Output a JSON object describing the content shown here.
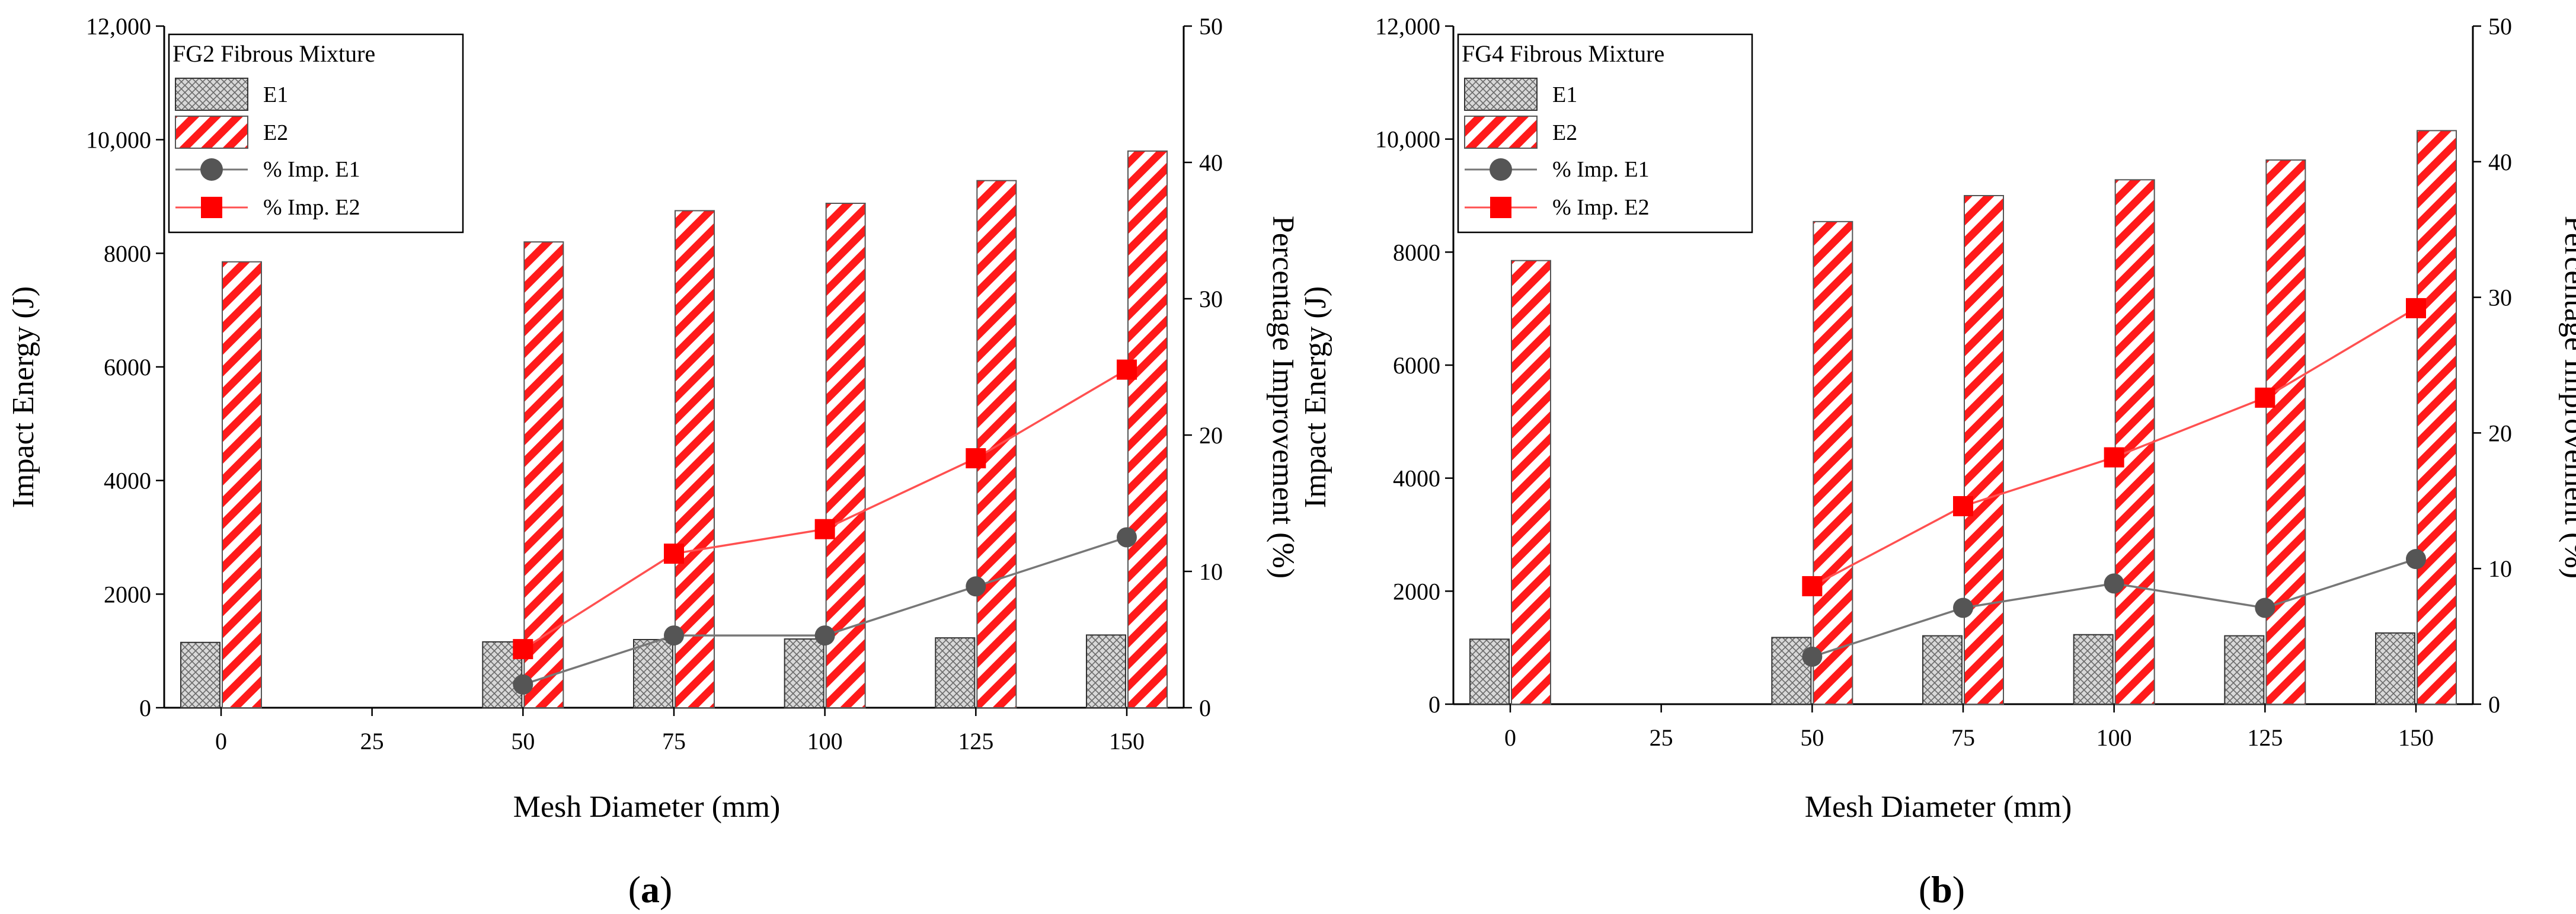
{
  "colors": {
    "e1_fill": "#d8d8d8",
    "e1_stroke": "#333333",
    "e2_stripe": "#ff1a1a",
    "e2_stroke": "#555555",
    "imp_e1": "#555555",
    "imp_e1_line": "#777777",
    "imp_e2": "#ff0000",
    "imp_e2_line": "#ff5050"
  },
  "chart_data": [
    {
      "type": "bar",
      "panel_label": "a",
      "legend_title": "FG2 Fibrous Mixture",
      "xlabel": "Mesh Diameter (mm)",
      "ylabel": "Impact Energy  (J)",
      "y2label": "Percentage Improvement  (%)",
      "categories": [
        "0",
        "25",
        "50",
        "75",
        "100",
        "125",
        "150"
      ],
      "ylim": [
        0,
        12000
      ],
      "y2lim": [
        0,
        50
      ],
      "yticks": [
        "0",
        "2000",
        "4000",
        "6000",
        "8000",
        "10,000",
        "12,000"
      ],
      "y2ticks": [
        "0",
        "10",
        "20",
        "30",
        "40",
        "50"
      ],
      "legend_labels": [
        "E1",
        "E2",
        "% Imp. E1",
        "% Imp. E2"
      ],
      "series": [
        {
          "name": "E1",
          "kind": "bar",
          "axis": "left",
          "values": [
            1150,
            null,
            1160,
            1200,
            1210,
            1230,
            1280
          ]
        },
        {
          "name": "E2",
          "kind": "bar",
          "axis": "left",
          "values": [
            7850,
            null,
            8200,
            8750,
            8880,
            9280,
            9800
          ]
        },
        {
          "name": "% Imp. E1",
          "kind": "line",
          "axis": "right",
          "values": [
            null,
            null,
            1.7,
            5.3,
            5.3,
            8.9,
            12.5
          ]
        },
        {
          "name": "% Imp. E2",
          "kind": "line",
          "axis": "right",
          "values": [
            null,
            null,
            4.3,
            11.3,
            13.1,
            18.3,
            24.8
          ]
        }
      ]
    },
    {
      "type": "bar",
      "panel_label": "b",
      "legend_title": "FG4 Fibrous Mixture",
      "xlabel": "Mesh Diameter (mm)",
      "ylabel": "Impact Energy  (J)",
      "y2label": "Percentage Improvement  (%)",
      "categories": [
        "0",
        "25",
        "50",
        "75",
        "100",
        "125",
        "150"
      ],
      "ylim": [
        0,
        12000
      ],
      "y2lim": [
        0,
        50
      ],
      "yticks": [
        "0",
        "2000",
        "4000",
        "6000",
        "8000",
        "10,000",
        "12,000"
      ],
      "y2ticks": [
        "0",
        "10",
        "20",
        "30",
        "40",
        "50"
      ],
      "legend_labels": [
        "E1",
        "E2",
        "% Imp. E1",
        "% Imp. E2"
      ],
      "series": [
        {
          "name": "E1",
          "kind": "bar",
          "axis": "left",
          "values": [
            1150,
            null,
            1180,
            1210,
            1230,
            1210,
            1260
          ]
        },
        {
          "name": "E2",
          "kind": "bar",
          "axis": "left",
          "values": [
            7850,
            null,
            8540,
            9000,
            9280,
            9630,
            10150
          ]
        },
        {
          "name": "% Imp. E1",
          "kind": "line",
          "axis": "right",
          "values": [
            null,
            null,
            3.5,
            7.1,
            8.9,
            7.1,
            10.7
          ]
        },
        {
          "name": "% Imp. E2",
          "kind": "line",
          "axis": "right",
          "values": [
            null,
            null,
            8.7,
            14.6,
            18.2,
            22.6,
            29.2
          ]
        }
      ]
    }
  ]
}
